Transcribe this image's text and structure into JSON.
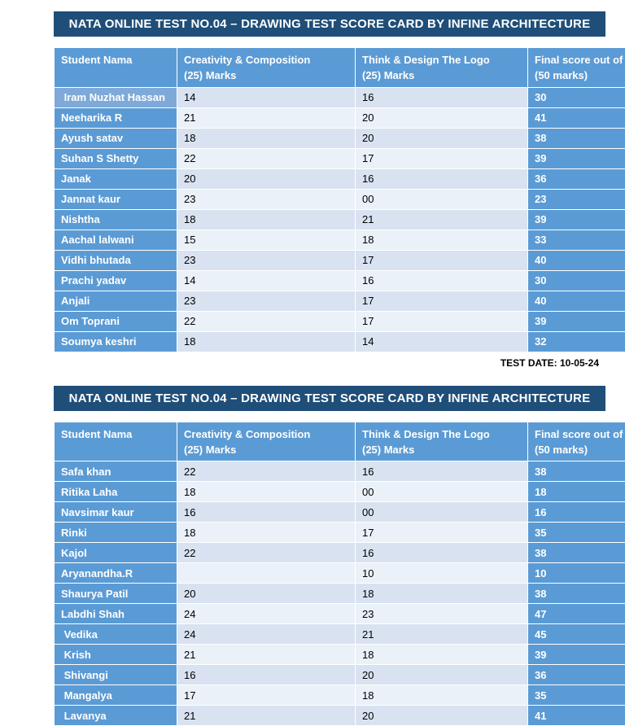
{
  "title": "NATA ONLINE TEST NO.04 – DRAWING TEST SCORE CARD BY INFINE ARCHITECTURE",
  "test_date": "TEST DATE: 10-05-24",
  "columns": [
    "Student Nama",
    "Creativity & Composition\n(25) Marks",
    "Think & Design The Logo\n(25) Marks",
    "Final score out of\n(50 marks)"
  ],
  "tables": [
    {
      "light_name_rows": [
        0
      ],
      "rows": [
        [
          " Iram Nuzhat Hassan",
          "14",
          "16",
          "30"
        ],
        [
          "Neeharika R",
          "21",
          "20",
          "41"
        ],
        [
          "Ayush satav",
          "18",
          "20",
          "38"
        ],
        [
          "Suhan S Shetty",
          "22",
          "17",
          "39"
        ],
        [
          "Janak",
          "20",
          "16",
          "36"
        ],
        [
          "Jannat kaur",
          "23",
          "00",
          "23"
        ],
        [
          "Nishtha",
          "18",
          "21",
          "39"
        ],
        [
          "Aachal lalwani",
          "15",
          "18",
          "33"
        ],
        [
          "Vidhi bhutada",
          "23",
          "17",
          "40"
        ],
        [
          "Prachi yadav",
          "14",
          "16",
          "30"
        ],
        [
          "Anjali",
          "23",
          "17",
          "40"
        ],
        [
          "Om Toprani",
          "22",
          "17",
          "39"
        ],
        [
          "Soumya keshri",
          "18",
          "14",
          "32"
        ]
      ]
    },
    {
      "light_name_rows": [],
      "rows": [
        [
          "Safa khan",
          "22",
          "16",
          "38"
        ],
        [
          "Ritika Laha",
          "18",
          "00",
          "18"
        ],
        [
          "Navsimar kaur",
          "16",
          "00",
          "16"
        ],
        [
          "Rinki",
          "18",
          "17",
          "35"
        ],
        [
          "Kajol",
          "22",
          "16",
          "38"
        ],
        [
          "Aryanandha.R",
          "",
          "10",
          "10"
        ],
        [
          "Shaurya Patil",
          "20",
          "18",
          "38"
        ],
        [
          "Labdhi Shah",
          "24",
          "23",
          "47"
        ],
        [
          " Vedika",
          "24",
          "21",
          "45"
        ],
        [
          " Krish",
          "21",
          "18",
          "39"
        ],
        [
          " Shivangi",
          "16",
          "20",
          "36"
        ],
        [
          " Mangalya",
          "17",
          "18",
          "35"
        ],
        [
          " Lavanya",
          "21",
          "20",
          "41"
        ]
      ]
    }
  ],
  "colors": {
    "title_bg": "#1F4E79",
    "header_bg": "#5B9BD5",
    "name_bg": "#5B9BD5",
    "name_bg_light": "#7EA9D8",
    "band_odd": "#D9E2F0",
    "band_even": "#EBF1F8",
    "final_bg": "#5B9BD5"
  }
}
